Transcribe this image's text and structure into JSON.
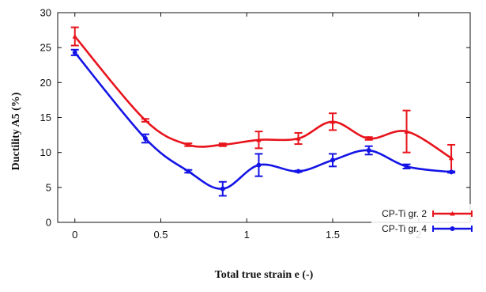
{
  "chart_data": {
    "type": "line",
    "title": "",
    "xlabel": "Total true strain e  (-)",
    "ylabel": "Ductility A5 (%)",
    "xlim": [
      -0.1,
      2.3
    ],
    "ylim": [
      0,
      30
    ],
    "x_ticks": [
      0,
      0.5,
      1,
      1.5,
      2
    ],
    "x_tick_labels": [
      "0",
      "0.5",
      "1",
      "1.5",
      "2"
    ],
    "y_ticks": [
      0,
      5,
      10,
      15,
      20,
      25,
      30
    ],
    "y_tick_labels": [
      "0",
      "5",
      "10",
      "15",
      "20",
      "25",
      "30"
    ],
    "grid": false,
    "legend_position": "bottom-right",
    "series": [
      {
        "name": "CP-Ti gr. 2",
        "color": "#e8141c",
        "marker": "triangle",
        "x": [
          0,
          0.41,
          0.66,
          0.86,
          1.07,
          1.3,
          1.5,
          1.71,
          1.93,
          2.19
        ],
        "y": [
          26.6,
          14.6,
          11.1,
          11.1,
          11.8,
          12.0,
          14.4,
          12.0,
          13.0,
          9.2
        ],
        "err": [
          1.3,
          0.2,
          0.2,
          0.2,
          1.2,
          0.8,
          1.2,
          0.2,
          3.0,
          1.9
        ]
      },
      {
        "name": "CP-Ti gr. 4",
        "color": "#1414e6",
        "marker": "circle",
        "x": [
          0,
          0.41,
          0.66,
          0.86,
          1.07,
          1.3,
          1.5,
          1.71,
          1.93,
          2.19
        ],
        "y": [
          24.3,
          12.0,
          7.3,
          4.8,
          8.2,
          7.3,
          8.9,
          10.3,
          8.0,
          7.2
        ],
        "err": [
          0.4,
          0.6,
          0.2,
          1.0,
          1.6,
          0.1,
          0.9,
          0.6,
          0.3,
          0.1
        ]
      }
    ]
  }
}
